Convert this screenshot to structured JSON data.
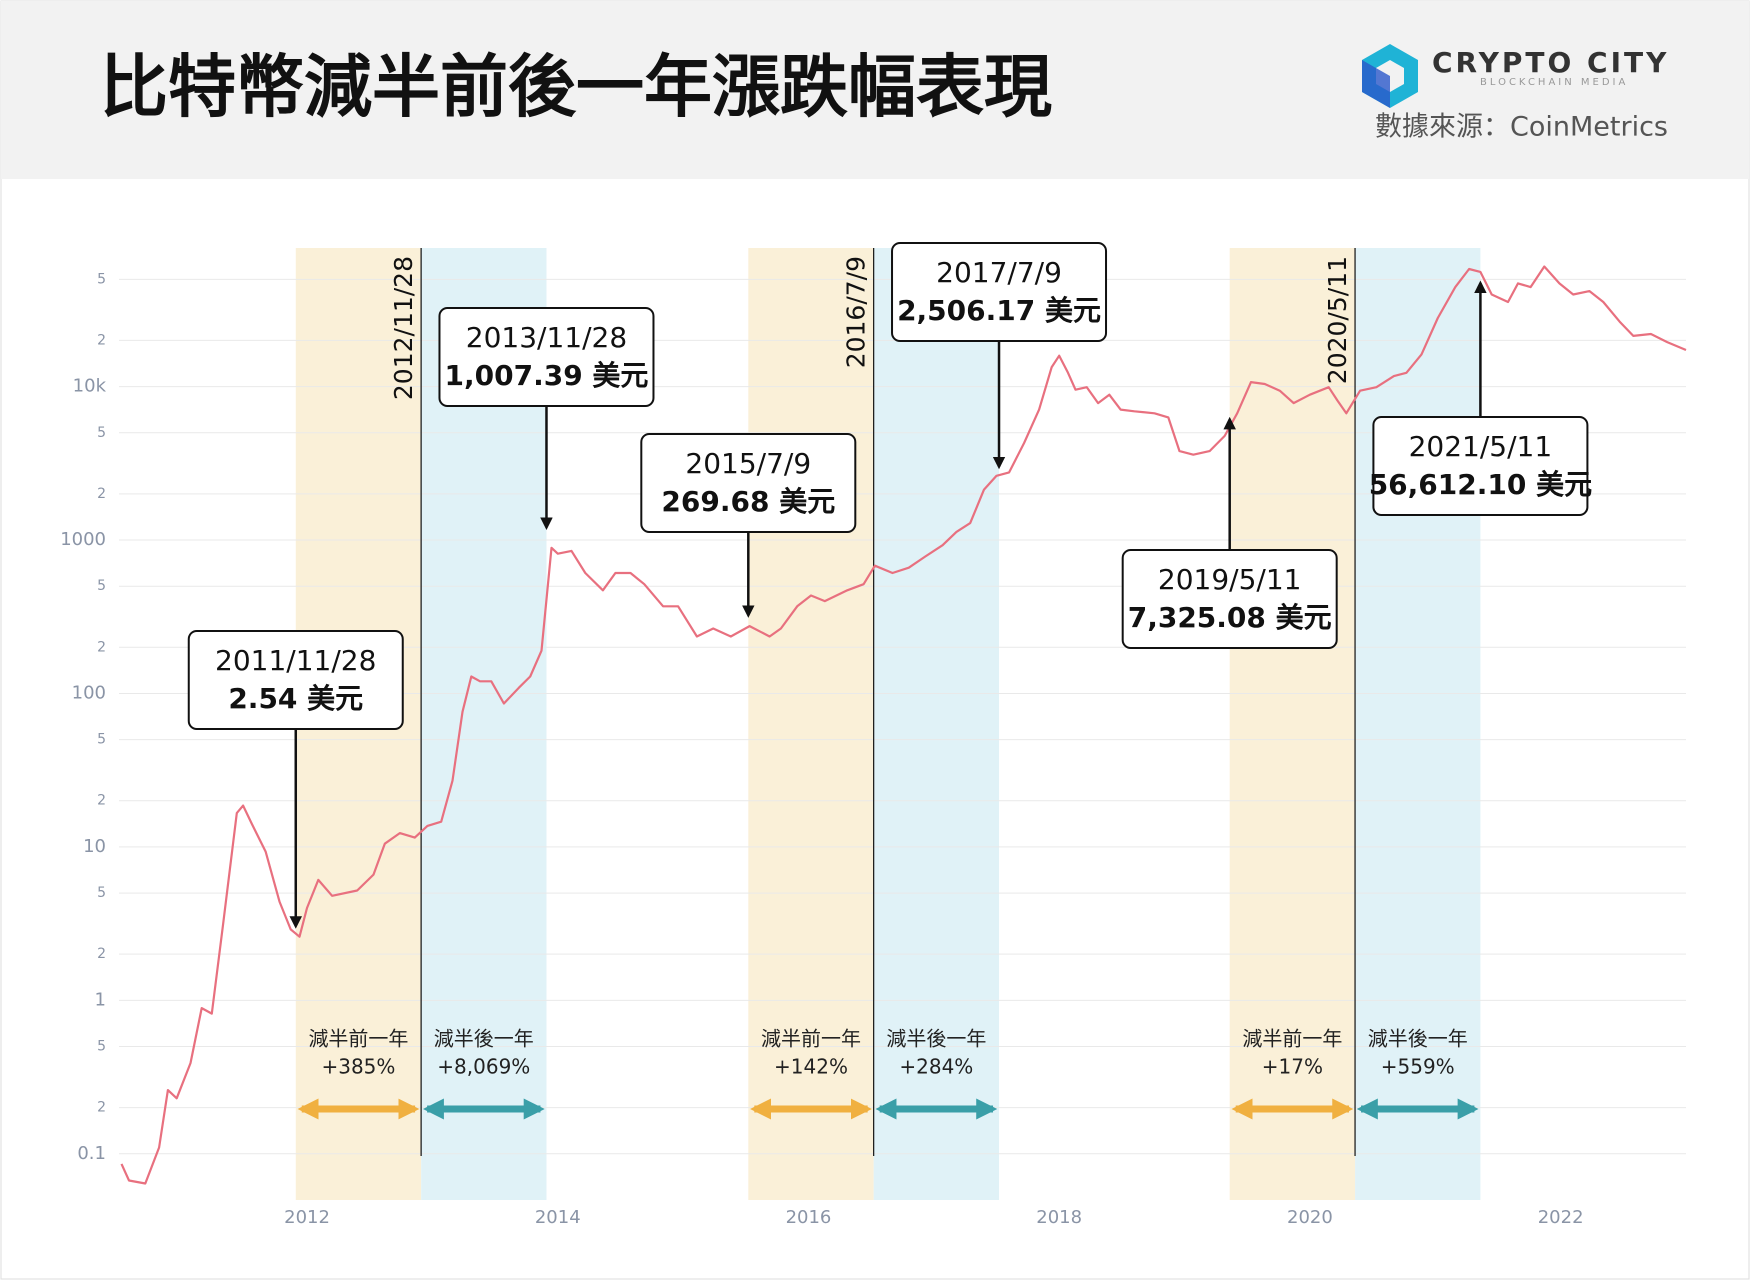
{
  "header": {
    "title": "比特幣減半前後一年漲跌幅表現",
    "logo": "CRYPTO CITY",
    "logo_sub": "BLOCKCHAIN MEDIA",
    "source": "數據來源：CoinMetrics"
  },
  "chart_data": {
    "type": "line",
    "log_y": true,
    "grid": true,
    "xlim": [
      2010.5,
      2023.0
    ],
    "xticks": [
      2012,
      2014,
      2016,
      2018,
      2020,
      2022
    ],
    "ylim": [
      0.05,
      80000
    ],
    "yticks": [
      0.1,
      {
        "value": 0.2,
        "label": "2"
      },
      {
        "value": 0.5,
        "label": "5"
      },
      1,
      2,
      5,
      10,
      {
        "value": 20,
        "label": "2"
      },
      {
        "value": 50,
        "label": "5"
      },
      100,
      {
        "value": 200,
        "label": "2"
      },
      {
        "value": 500,
        "label": "5"
      },
      1000,
      {
        "value": 2000,
        "label": "2"
      },
      {
        "value": 5000,
        "label": "5"
      },
      {
        "value": 10000,
        "label": "10k"
      },
      {
        "value": 20000,
        "label": "2"
      },
      {
        "value": 50000,
        "label": "5"
      }
    ],
    "x": [
      2010.52,
      2010.58,
      2010.71,
      2010.82,
      2010.89,
      2010.96,
      2011.07,
      2011.16,
      2011.24,
      2011.33,
      2011.44,
      2011.49,
      2011.56,
      2011.67,
      2011.78,
      2011.87,
      2011.94,
      2012.0,
      2012.09,
      2012.2,
      2012.4,
      2012.53,
      2012.62,
      2012.74,
      2012.86,
      2012.96,
      2013.07,
      2013.16,
      2013.24,
      2013.31,
      2013.38,
      2013.47,
      2013.57,
      2013.69,
      2013.78,
      2013.87,
      2013.95,
      2014.0,
      2014.11,
      2014.22,
      2014.36,
      2014.46,
      2014.58,
      2014.69,
      2014.84,
      2014.96,
      2015.11,
      2015.24,
      2015.38,
      2015.53,
      2015.69,
      2015.78,
      2015.91,
      2016.02,
      2016.13,
      2016.31,
      2016.44,
      2016.53,
      2016.67,
      2016.8,
      2016.93,
      2017.07,
      2017.18,
      2017.29,
      2017.4,
      2017.5,
      2017.6,
      2017.72,
      2017.84,
      2017.94,
      2018.0,
      2018.07,
      2018.13,
      2018.22,
      2018.31,
      2018.4,
      2018.49,
      2018.6,
      2018.76,
      2018.87,
      2018.96,
      2019.07,
      2019.2,
      2019.32,
      2019.42,
      2019.53,
      2019.64,
      2019.76,
      2019.87,
      2020.0,
      2020.15,
      2020.22,
      2020.29,
      2020.4,
      2020.53,
      2020.67,
      2020.77,
      2020.89,
      2021.02,
      2021.16,
      2021.27,
      2021.36,
      2021.45,
      2021.58,
      2021.66,
      2021.76,
      2021.87,
      2021.99,
      2022.1,
      2022.23,
      2022.34,
      2022.47,
      2022.58,
      2022.72,
      2022.85,
      2023.0
    ],
    "series": [
      {
        "color": "#e8707f",
        "values": [
          0.086,
          0.067,
          0.064,
          0.11,
          0.26,
          0.23,
          0.39,
          0.89,
          0.82,
          3.1,
          16.6,
          18.6,
          14.1,
          9.3,
          4.4,
          2.9,
          2.6,
          4.0,
          6.1,
          4.8,
          5.2,
          6.6,
          10.5,
          12.3,
          11.5,
          13.7,
          14.6,
          27,
          76,
          129,
          120,
          120,
          86,
          109,
          129,
          190,
          890,
          815,
          850,
          610,
          470,
          610,
          610,
          515,
          370,
          370,
          235,
          265,
          235,
          275,
          235,
          265,
          370,
          435,
          400,
          470,
          515,
          680,
          610,
          660,
          780,
          925,
          1130,
          1290,
          2130,
          2620,
          2760,
          4290,
          7080,
          13400,
          15900,
          12300,
          9540,
          9900,
          7800,
          8850,
          7080,
          6900,
          6700,
          6300,
          3800,
          3600,
          3800,
          4770,
          6700,
          10700,
          10400,
          9400,
          7800,
          8850,
          9900,
          8100,
          6700,
          9400,
          9900,
          11700,
          12300,
          16200,
          28000,
          44500,
          58400,
          55900,
          39800,
          35600,
          47000,
          44500,
          60600,
          47000,
          39800,
          41900,
          35600,
          26500,
          21400,
          22000,
          19500,
          17300
        ]
      }
    ],
    "halvings": [
      {
        "date": "2012/11/28",
        "x": 2012.91,
        "start": 2011.91,
        "end": 2013.91,
        "before_label": "減半前一年",
        "before_change": "+385%",
        "after_label": "減半後一年",
        "after_change": "+8,069%"
      },
      {
        "date": "2016/7/9",
        "x": 2016.52,
        "start": 2015.52,
        "end": 2017.52,
        "before_label": "減半前一年",
        "before_change": "+142%",
        "after_label": "減半後一年",
        "after_change": "+284%"
      },
      {
        "date": "2020/5/11",
        "x": 2020.36,
        "start": 2019.36,
        "end": 2021.36,
        "before_label": "減半前一年",
        "before_change": "+17%",
        "after_label": "減半後一年",
        "after_change": "+559%"
      }
    ],
    "annotations": [
      {
        "date": "2011/11/28",
        "x": 2011.91,
        "value": 2.54,
        "label": "2.54 美元"
      },
      {
        "date": "2013/11/28",
        "x": 2013.91,
        "value": 1007.39,
        "label": "1,007.39 美元"
      },
      {
        "date": "2015/7/9",
        "x": 2015.52,
        "value": 269.68,
        "label": "269.68 美元"
      },
      {
        "date": "2017/7/9",
        "x": 2017.52,
        "value": 2506.17,
        "label": "2,506.17 美元"
      },
      {
        "date": "2019/5/11",
        "x": 2019.36,
        "value": 7325.08,
        "label": "7,325.08 美元"
      },
      {
        "date": "2021/5/11",
        "x": 2021.36,
        "value": 56612.1,
        "label": "56,612.10 美元"
      }
    ]
  }
}
